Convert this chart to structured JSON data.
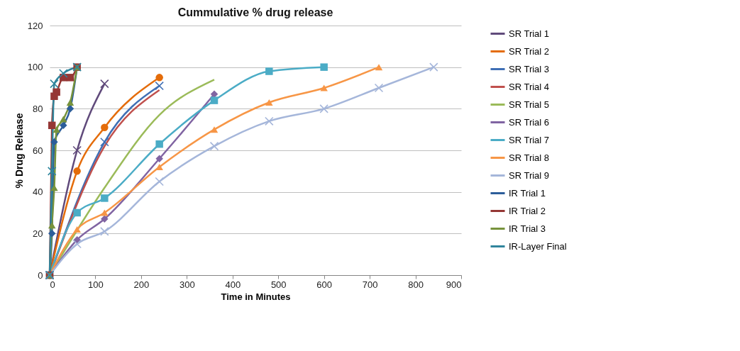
{
  "chart_data": {
    "type": "line",
    "title": "Cummulative % drug release",
    "xlabel": "Time in Minutes",
    "ylabel": "% Drug Release",
    "xlim": [
      0,
      900
    ],
    "xticks": [
      0,
      100,
      200,
      300,
      400,
      500,
      600,
      700,
      800,
      900
    ],
    "ylim": [
      0,
      120
    ],
    "yticks": [
      0,
      20,
      40,
      60,
      80,
      100,
      120
    ],
    "grid": "y",
    "legend": "right",
    "series": [
      {
        "name": "SR Trial 1",
        "color": "#604a7b",
        "marker": "cross",
        "x": [
          0,
          60,
          120
        ],
        "values": [
          0,
          60,
          92
        ]
      },
      {
        "name": "SR Trial 2",
        "color": "#e46c0a",
        "marker": "circle",
        "x": [
          0,
          60,
          120,
          240
        ],
        "values": [
          0,
          50,
          71,
          95
        ]
      },
      {
        "name": "SR Trial 3",
        "color": "#3f6fb5",
        "marker": "cross",
        "x": [
          0,
          120,
          240
        ],
        "values": [
          0,
          64,
          91
        ]
      },
      {
        "name": "SR Trial 4",
        "color": "#c0504d",
        "marker": "none",
        "x": [
          0,
          120,
          240
        ],
        "values": [
          0,
          62,
          89
        ]
      },
      {
        "name": "SR Trial 5",
        "color": "#9bbb59",
        "marker": "none",
        "x": [
          0,
          120,
          240,
          360
        ],
        "values": [
          0,
          42,
          77,
          94
        ]
      },
      {
        "name": "SR Trial 6",
        "color": "#8064a2",
        "marker": "diamond",
        "x": [
          0,
          60,
          120,
          240,
          360
        ],
        "values": [
          0,
          17,
          27,
          56,
          87
        ]
      },
      {
        "name": "SR Trial 7",
        "color": "#4bacc6",
        "marker": "square",
        "x": [
          0,
          60,
          120,
          240,
          360,
          480,
          600
        ],
        "values": [
          0,
          30,
          37,
          63,
          84,
          98,
          100
        ]
      },
      {
        "name": "SR Trial 8",
        "color": "#f79646",
        "marker": "triangle",
        "x": [
          0,
          60,
          120,
          240,
          360,
          480,
          600,
          720
        ],
        "values": [
          0,
          22,
          30,
          52,
          70,
          83,
          90,
          100
        ]
      },
      {
        "name": "SR Trial 9",
        "color": "#a5b6da",
        "marker": "cross",
        "x": [
          0,
          60,
          120,
          240,
          360,
          480,
          600,
          720,
          840
        ],
        "values": [
          0,
          15,
          21,
          45,
          62,
          74,
          80,
          90,
          100
        ]
      },
      {
        "name": "IR Trial 1",
        "color": "#2c5d9a",
        "marker": "diamond",
        "x": [
          0,
          5,
          10,
          30,
          45,
          60
        ],
        "values": [
          0,
          20,
          64,
          72,
          80,
          100
        ]
      },
      {
        "name": "IR Trial 2",
        "color": "#953735",
        "marker": "square",
        "x": [
          0,
          5,
          10,
          15,
          30,
          45,
          60
        ],
        "values": [
          0,
          72,
          86,
          88,
          95,
          95,
          100
        ]
      },
      {
        "name": "IR Trial 3",
        "color": "#77933c",
        "marker": "triangle",
        "x": [
          0,
          5,
          10,
          15,
          30,
          45,
          60
        ],
        "values": [
          0,
          24,
          42,
          70,
          75,
          83,
          100
        ]
      },
      {
        "name": "IR-Layer Final",
        "color": "#31859c",
        "marker": "cross",
        "x": [
          0,
          5,
          10,
          30,
          60
        ],
        "values": [
          0,
          50,
          92,
          97,
          100
        ]
      }
    ]
  }
}
